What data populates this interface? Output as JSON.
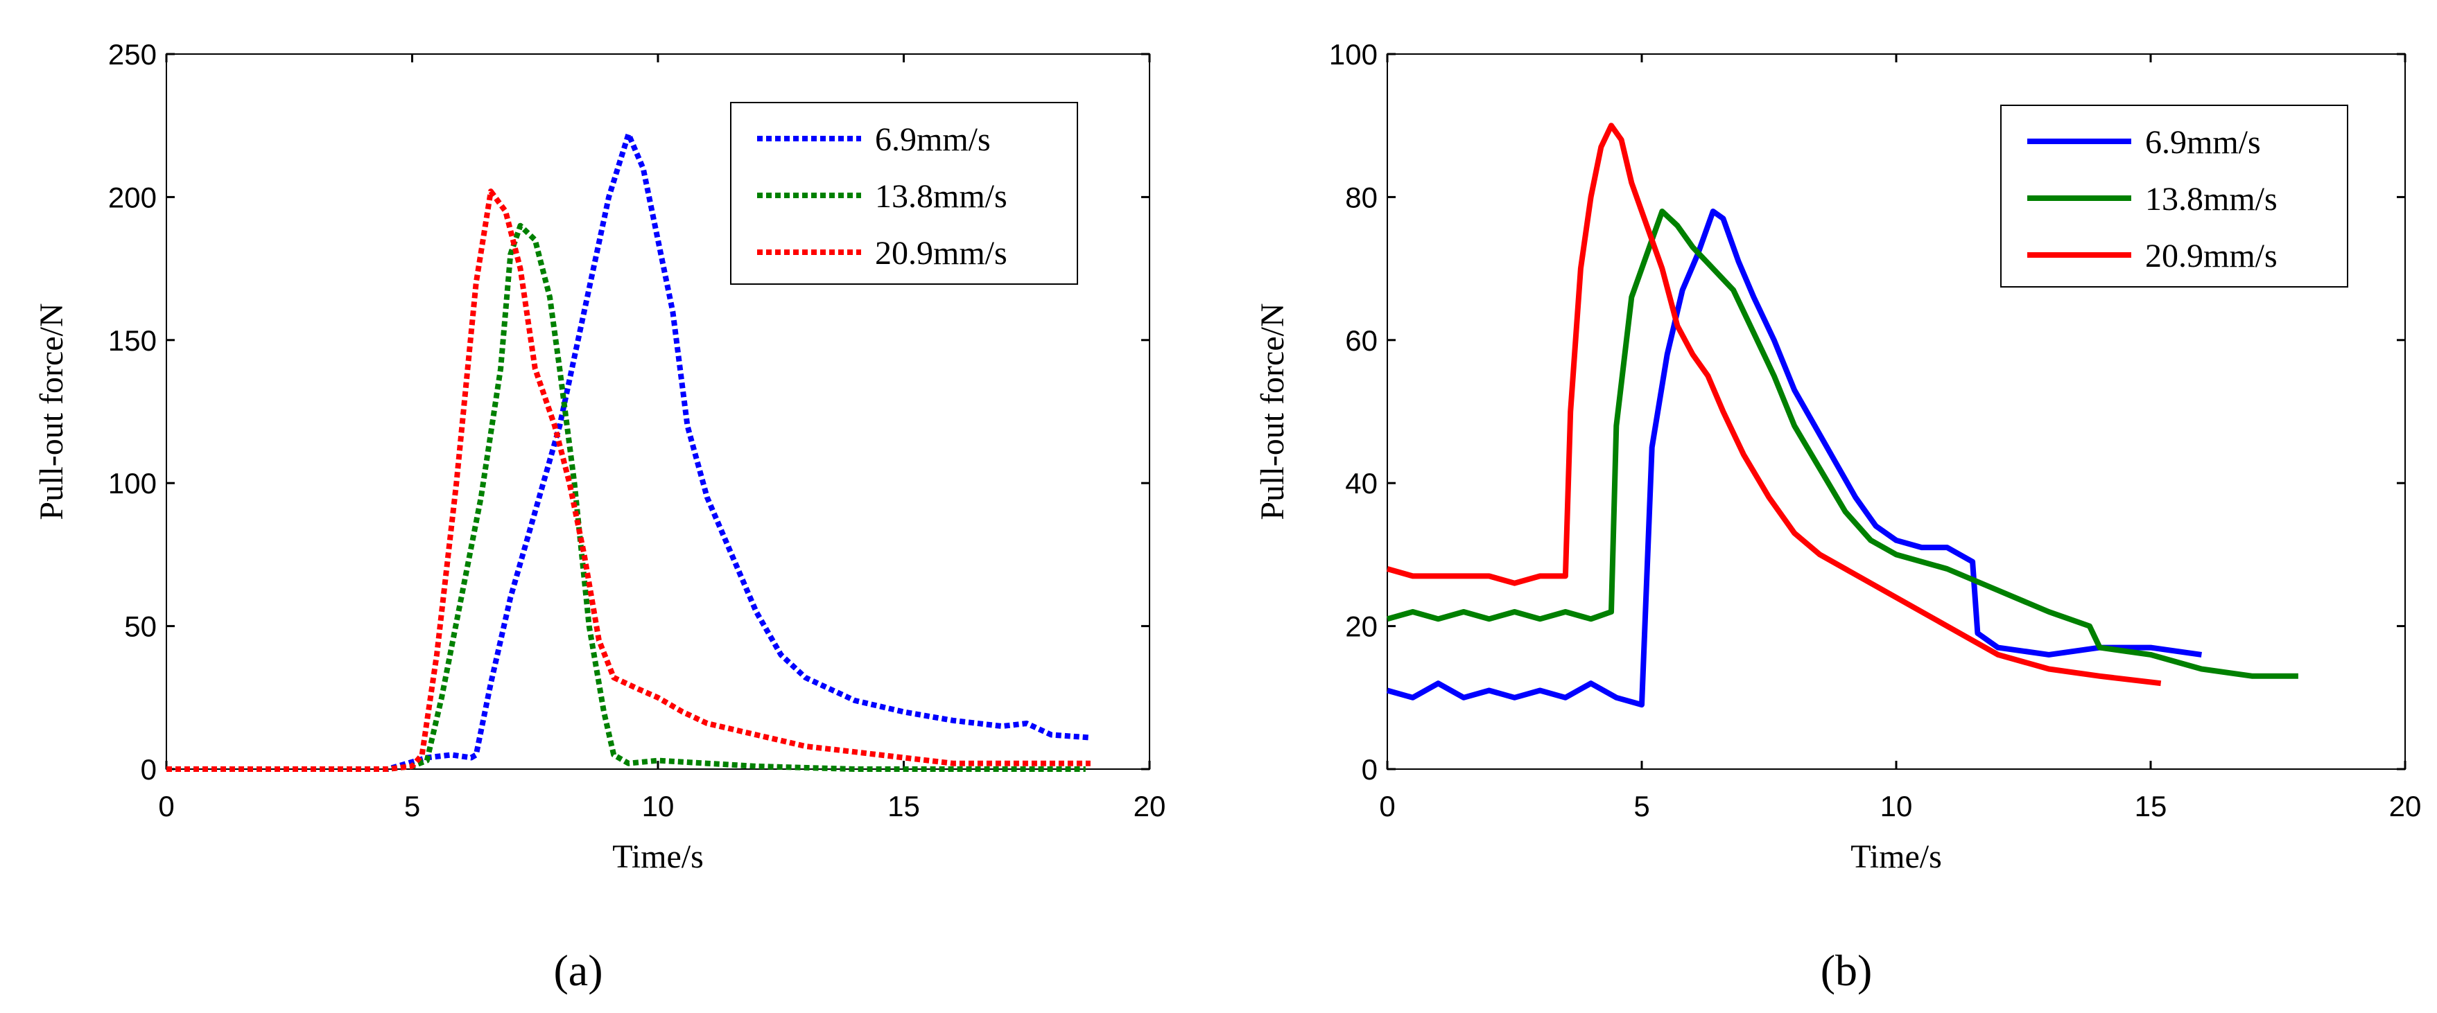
{
  "chart_data": [
    {
      "panel": "a",
      "panel_label": "(a)",
      "type": "line",
      "line_style": "dotted",
      "xlabel": "Time/s",
      "ylabel": "Pull-out force/N",
      "xlim": [
        0,
        20
      ],
      "ylim": [
        0,
        250
      ],
      "xticks": [
        0,
        5,
        10,
        15,
        20
      ],
      "yticks": [
        0,
        50,
        100,
        150,
        200,
        250
      ],
      "legend_position": "top-right",
      "series": [
        {
          "name": "6.9mm/s",
          "color": "#0000ff",
          "points": [
            [
              0,
              0
            ],
            [
              4,
              0
            ],
            [
              4.5,
              0
            ],
            [
              4.9,
              2
            ],
            [
              5.3,
              4
            ],
            [
              5.8,
              5
            ],
            [
              6.2,
              4
            ],
            [
              6.3,
              5
            ],
            [
              6.6,
              30
            ],
            [
              7,
              60
            ],
            [
              7.5,
              90
            ],
            [
              8,
              120
            ],
            [
              8.5,
              160
            ],
            [
              9,
              200
            ],
            [
              9.4,
              222
            ],
            [
              9.7,
              210
            ],
            [
              10,
              185
            ],
            [
              10.3,
              160
            ],
            [
              10.6,
              120
            ],
            [
              11,
              95
            ],
            [
              11.5,
              75
            ],
            [
              12,
              55
            ],
            [
              12.5,
              40
            ],
            [
              13,
              32
            ],
            [
              14,
              24
            ],
            [
              15,
              20
            ],
            [
              16,
              17
            ],
            [
              17,
              15
            ],
            [
              17.5,
              16
            ],
            [
              18,
              12
            ],
            [
              18.8,
              11
            ]
          ]
        },
        {
          "name": "13.8mm/s",
          "color": "#008000",
          "points": [
            [
              0,
              0
            ],
            [
              4.5,
              0
            ],
            [
              5,
              1
            ],
            [
              5.3,
              3
            ],
            [
              5.6,
              25
            ],
            [
              6,
              60
            ],
            [
              6.4,
              95
            ],
            [
              6.8,
              140
            ],
            [
              7,
              180
            ],
            [
              7.2,
              190
            ],
            [
              7.5,
              185
            ],
            [
              7.8,
              165
            ],
            [
              8,
              140
            ],
            [
              8.3,
              100
            ],
            [
              8.6,
              50
            ],
            [
              8.9,
              20
            ],
            [
              9.1,
              5
            ],
            [
              9.4,
              2
            ],
            [
              10,
              3
            ],
            [
              11,
              2
            ],
            [
              12,
              1
            ],
            [
              14,
              0
            ],
            [
              16,
              0
            ],
            [
              18.7,
              0
            ]
          ]
        },
        {
          "name": "20.9mm/s",
          "color": "#ff0000",
          "points": [
            [
              0,
              0
            ],
            [
              4.5,
              0
            ],
            [
              5,
              1
            ],
            [
              5.2,
              5
            ],
            [
              5.5,
              40
            ],
            [
              5.9,
              100
            ],
            [
              6.3,
              170
            ],
            [
              6.6,
              202
            ],
            [
              6.9,
              195
            ],
            [
              7.2,
              175
            ],
            [
              7.5,
              140
            ],
            [
              7.9,
              120
            ],
            [
              8.2,
              100
            ],
            [
              8.5,
              75
            ],
            [
              8.8,
              45
            ],
            [
              9.1,
              32
            ],
            [
              9.6,
              28
            ],
            [
              10,
              25
            ],
            [
              10.5,
              20
            ],
            [
              11,
              16
            ],
            [
              12,
              12
            ],
            [
              13,
              8
            ],
            [
              14,
              6
            ],
            [
              15,
              4
            ],
            [
              16,
              2
            ],
            [
              17,
              2
            ],
            [
              18.8,
              2
            ]
          ]
        }
      ]
    },
    {
      "panel": "b",
      "panel_label": "(b)",
      "type": "line",
      "line_style": "solid",
      "xlabel": "Time/s",
      "ylabel": "Pull-out force/N",
      "xlim": [
        0,
        20
      ],
      "ylim": [
        0,
        100
      ],
      "xticks": [
        0,
        5,
        10,
        15,
        20
      ],
      "yticks": [
        0,
        20,
        40,
        60,
        80,
        100
      ],
      "legend_position": "top-right",
      "series": [
        {
          "name": "6.9mm/s",
          "color": "#0000ff",
          "points": [
            [
              0,
              11
            ],
            [
              0.5,
              10
            ],
            [
              1,
              12
            ],
            [
              1.5,
              10
            ],
            [
              2,
              11
            ],
            [
              2.5,
              10
            ],
            [
              3,
              11
            ],
            [
              3.5,
              10
            ],
            [
              4,
              12
            ],
            [
              4.5,
              10
            ],
            [
              5,
              9
            ],
            [
              5.2,
              45
            ],
            [
              5.5,
              58
            ],
            [
              5.8,
              67
            ],
            [
              6.1,
              72
            ],
            [
              6.4,
              78
            ],
            [
              6.6,
              77
            ],
            [
              6.9,
              71
            ],
            [
              7.2,
              66
            ],
            [
              7.6,
              60
            ],
            [
              8,
              53
            ],
            [
              8.4,
              48
            ],
            [
              8.8,
              43
            ],
            [
              9.2,
              38
            ],
            [
              9.6,
              34
            ],
            [
              10,
              32
            ],
            [
              10.5,
              31
            ],
            [
              11,
              31
            ],
            [
              11.5,
              29
            ],
            [
              11.6,
              19
            ],
            [
              12,
              17
            ],
            [
              13,
              16
            ],
            [
              14,
              17
            ],
            [
              15,
              17
            ],
            [
              16,
              16
            ]
          ]
        },
        {
          "name": "13.8mm/s",
          "color": "#008000",
          "points": [
            [
              0,
              21
            ],
            [
              0.5,
              22
            ],
            [
              1,
              21
            ],
            [
              1.5,
              22
            ],
            [
              2,
              21
            ],
            [
              2.5,
              22
            ],
            [
              3,
              21
            ],
            [
              3.5,
              22
            ],
            [
              4,
              21
            ],
            [
              4.4,
              22
            ],
            [
              4.5,
              48
            ],
            [
              4.8,
              66
            ],
            [
              5.1,
              72
            ],
            [
              5.4,
              78
            ],
            [
              5.7,
              76
            ],
            [
              6,
              73
            ],
            [
              6.4,
              70
            ],
            [
              6.8,
              67
            ],
            [
              7.2,
              61
            ],
            [
              7.6,
              55
            ],
            [
              8,
              48
            ],
            [
              8.5,
              42
            ],
            [
              9,
              36
            ],
            [
              9.5,
              32
            ],
            [
              10,
              30
            ],
            [
              11,
              28
            ],
            [
              12,
              25
            ],
            [
              13,
              22
            ],
            [
              13.8,
              20
            ],
            [
              14,
              17
            ],
            [
              15,
              16
            ],
            [
              16,
              14
            ],
            [
              17,
              13
            ],
            [
              17.9,
              13
            ]
          ]
        },
        {
          "name": "20.9mm/s",
          "color": "#ff0000",
          "points": [
            [
              0,
              28
            ],
            [
              0.5,
              27
            ],
            [
              1,
              27
            ],
            [
              1.5,
              27
            ],
            [
              2,
              27
            ],
            [
              2.5,
              26
            ],
            [
              3,
              27
            ],
            [
              3.5,
              27
            ],
            [
              3.6,
              50
            ],
            [
              3.8,
              70
            ],
            [
              4,
              80
            ],
            [
              4.2,
              87
            ],
            [
              4.4,
              90
            ],
            [
              4.6,
              88
            ],
            [
              4.8,
              82
            ],
            [
              5.1,
              76
            ],
            [
              5.4,
              70
            ],
            [
              5.7,
              62
            ],
            [
              6,
              58
            ],
            [
              6.3,
              55
            ],
            [
              6.6,
              50
            ],
            [
              7,
              44
            ],
            [
              7.5,
              38
            ],
            [
              8,
              33
            ],
            [
              8.5,
              30
            ],
            [
              9,
              28
            ],
            [
              10,
              24
            ],
            [
              11,
              20
            ],
            [
              12,
              16
            ],
            [
              13,
              14
            ],
            [
              14,
              13
            ],
            [
              15.2,
              12
            ]
          ]
        }
      ]
    }
  ]
}
